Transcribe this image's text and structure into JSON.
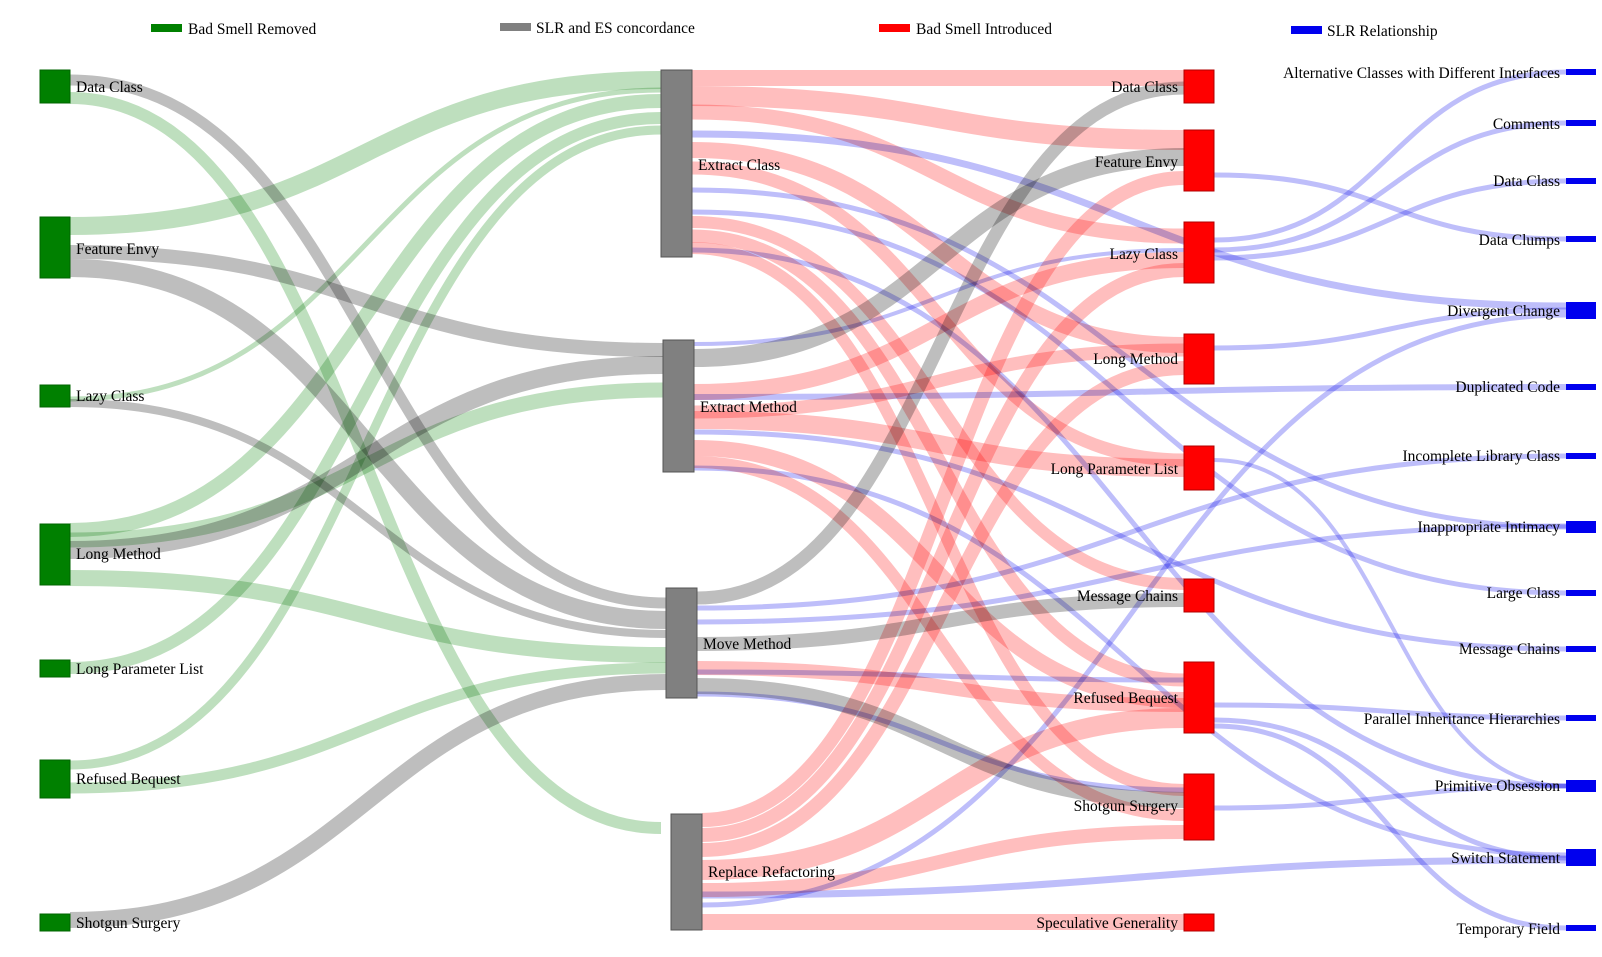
{
  "legend": [
    {
      "label": "Bad Smell Removed",
      "color": "#008000"
    },
    {
      "label": "SLR and ES concordance",
      "color": "#808080"
    },
    {
      "label": "Bad Smell Introduced",
      "color": "#ff0000"
    },
    {
      "label": "SLR Relationship",
      "color": "#0000ee"
    }
  ],
  "colors": {
    "removed_node": "#008000",
    "refactoring_node": "#808080",
    "introduced_node": "#ff0000",
    "slr_node": "#0000ee",
    "removed_link": "#b3d9b3",
    "concordance_link": "#b3b3b3",
    "introduced_link": "#ffb3b3",
    "slr_link": "#b3b3f9"
  },
  "diagram": {
    "removed": [
      "Data Class",
      "Feature Envy",
      "Lazy Class",
      "Long Method",
      "Long Parameter List",
      "Refused Bequest",
      "Shotgun Surgery"
    ],
    "refactorings": [
      "Extract Class",
      "Extract Method",
      "Move Method",
      "Replace Refactoring"
    ],
    "introduced": [
      "Data Class",
      "Feature Envy",
      "Lazy Class",
      "Long Method",
      "Long Parameter List",
      "Message Chains",
      "Refused Bequest",
      "Shotgun Surgery",
      "Speculative Generality"
    ],
    "slr": [
      "Alternative Classes with Different Interfaces",
      "Comments",
      "Data Class",
      "Data Clumps",
      "Divergent Change",
      "Duplicated Code",
      "Incomplete Library Class",
      "Inappropriate Intimacy",
      "Large Class",
      "Message Chains",
      "Parallel Inheritance Hierarchies",
      "Primitive Obsession",
      "Switch Statement",
      "Temporary Field"
    ]
  }
}
